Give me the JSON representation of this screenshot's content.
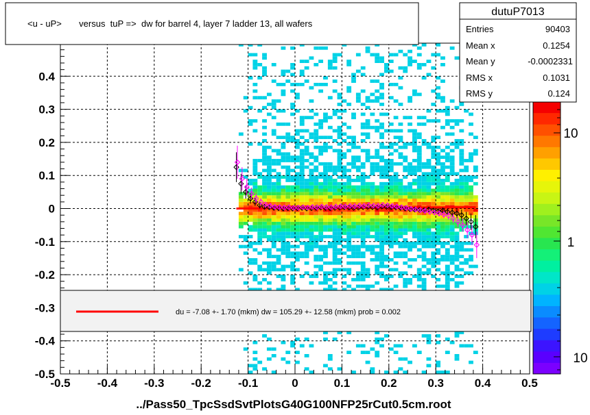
{
  "chart_data": {
    "type": "heatmap",
    "title": "<u - uP>       versus  tuP =>  dw for barrel 4, layer 7 ladder 13, all wafers",
    "xlabel": "../Pass50_TpcSsdSvtPlotsG40G100NFP25rCut0.5cm.root",
    "ylabel": "",
    "xlim": [
      -0.5,
      0.5
    ],
    "ylim": [
      -0.5,
      0.5
    ],
    "x_ticks": [
      -0.5,
      -0.4,
      -0.3,
      -0.2,
      -0.1,
      0,
      0.1,
      0.2,
      0.3,
      0.4,
      0.5
    ],
    "x_tick_labels": [
      "-0.5",
      "-0.4",
      "-0.3",
      "-0.2",
      "-0.1",
      "0",
      "0.1",
      "0.2",
      "0.3",
      "0.4",
      "0.5"
    ],
    "y_ticks": [
      -0.5,
      -0.4,
      -0.3,
      -0.2,
      -0.1,
      0,
      0.1,
      0.2,
      0.3,
      0.4
    ],
    "y_tick_labels": [
      "-0.5",
      "-0.4",
      "-0.3",
      "-0.2",
      "-0.1",
      "0",
      "0.1",
      "0.2",
      "0.3",
      "0.4"
    ],
    "grid": true,
    "occupied_x_range": [
      -0.12,
      0.39
    ],
    "stats": {
      "name": "dutuP7013",
      "rows": [
        {
          "label": "Entries",
          "value": "90403"
        },
        {
          "label": "Mean x",
          "value": "0.1254"
        },
        {
          "label": "Mean y",
          "value": "-0.0002331"
        },
        {
          "label": "RMS x",
          "value": "0.1031"
        },
        {
          "label": "RMS y",
          "value": "0.124"
        }
      ]
    },
    "color_scale": {
      "type": "log",
      "tick_labels": [
        "10",
        "1",
        "10"
      ],
      "colors": [
        "#7b00ff",
        "#5a00ff",
        "#3c14ff",
        "#1e3cff",
        "#1464ff",
        "#0a8cff",
        "#00b4ff",
        "#00d2e6",
        "#00e6c8",
        "#00f0a0",
        "#14f078",
        "#28e650",
        "#50e632",
        "#78e628",
        "#a0f01e",
        "#c8f514",
        "#e6f50a",
        "#fff000",
        "#ffc800",
        "#ffa000",
        "#ff7800",
        "#ff5000",
        "#ff2800",
        "#f50000"
      ]
    },
    "fit_legend": {
      "text": "du =   -7.08 +-  1.70 (mkm) dw =  105.29 +- 12.58 (mkm) prob = 0.002",
      "line_color": "#ff0000"
    },
    "fit_line": {
      "x": [
        -0.125,
        0.385
      ],
      "y": [
        0.0,
        0.004
      ],
      "color": "#ff0000"
    },
    "series": [
      {
        "marker_color": "#000000",
        "x": [
          -0.125,
          -0.115,
          -0.105,
          -0.095,
          -0.085,
          -0.075,
          -0.065,
          -0.055,
          -0.045,
          -0.035,
          -0.025,
          -0.015,
          -0.005,
          0.005,
          0.015,
          0.025,
          0.035,
          0.045,
          0.055,
          0.065,
          0.075,
          0.085,
          0.095,
          0.105,
          0.115,
          0.125,
          0.135,
          0.145,
          0.155,
          0.165,
          0.175,
          0.185,
          0.195,
          0.205,
          0.215,
          0.225,
          0.235,
          0.245,
          0.255,
          0.265,
          0.275,
          0.285,
          0.295,
          0.305,
          0.315,
          0.325,
          0.335,
          0.345,
          0.355,
          0.365,
          0.375,
          0.385
        ],
        "y": [
          0.125,
          0.075,
          0.05,
          0.03,
          0.02,
          0.01,
          0.005,
          0.004,
          0.002,
          0.001,
          0.0,
          0.001,
          0.0,
          0.001,
          0.002,
          0.0,
          0.001,
          0.002,
          0.003,
          0.002,
          0.001,
          0.002,
          0.003,
          0.004,
          0.003,
          0.002,
          0.003,
          0.004,
          0.005,
          0.004,
          0.003,
          0.006,
          0.005,
          0.004,
          0.003,
          0.002,
          0.0,
          -0.002,
          -0.003,
          -0.004,
          -0.005,
          -0.003,
          -0.006,
          -0.008,
          -0.006,
          -0.01,
          -0.012,
          -0.015,
          -0.02,
          -0.03,
          -0.04,
          -0.055
        ],
        "err": [
          0.045,
          0.03,
          0.02,
          0.015,
          0.012,
          0.01,
          0.008,
          0.006,
          0.005,
          0.004,
          0.004,
          0.004,
          0.003,
          0.003,
          0.003,
          0.003,
          0.003,
          0.003,
          0.003,
          0.003,
          0.003,
          0.003,
          0.003,
          0.003,
          0.003,
          0.003,
          0.003,
          0.003,
          0.003,
          0.003,
          0.003,
          0.003,
          0.004,
          0.004,
          0.004,
          0.004,
          0.004,
          0.005,
          0.005,
          0.005,
          0.006,
          0.006,
          0.007,
          0.008,
          0.009,
          0.01,
          0.012,
          0.014,
          0.017,
          0.02,
          0.025,
          0.035
        ]
      },
      {
        "marker_color": "#ff00ff",
        "x": [
          -0.125,
          -0.115,
          -0.105,
          -0.095,
          -0.085,
          -0.075,
          -0.065,
          -0.055,
          -0.045,
          -0.035,
          -0.025,
          -0.015,
          -0.005,
          0.005,
          0.015,
          0.025,
          0.035,
          0.045,
          0.055,
          0.065,
          0.075,
          0.085,
          0.095,
          0.105,
          0.115,
          0.125,
          0.135,
          0.145,
          0.155,
          0.165,
          0.175,
          0.185,
          0.195,
          0.205,
          0.215,
          0.225,
          0.235,
          0.245,
          0.255,
          0.265,
          0.275,
          0.285,
          0.295,
          0.305,
          0.315,
          0.325,
          0.335,
          0.345,
          0.355,
          0.365,
          0.375,
          0.385
        ],
        "y": [
          0.14,
          0.09,
          0.065,
          0.045,
          0.03,
          0.02,
          0.012,
          0.008,
          0.005,
          0.004,
          0.003,
          0.004,
          0.002,
          0.003,
          0.004,
          0.003,
          0.005,
          0.004,
          0.006,
          0.005,
          0.004,
          0.006,
          0.007,
          0.006,
          0.008,
          0.007,
          0.009,
          0.008,
          0.01,
          0.009,
          0.008,
          0.011,
          0.01,
          0.008,
          0.006,
          0.004,
          0.002,
          -0.001,
          -0.003,
          -0.005,
          -0.007,
          -0.01,
          -0.012,
          -0.015,
          -0.018,
          -0.022,
          -0.03,
          -0.04,
          -0.05,
          -0.065,
          -0.08,
          -0.11
        ],
        "err": [
          0.05,
          0.035,
          0.025,
          0.018,
          0.014,
          0.011,
          0.009,
          0.007,
          0.006,
          0.005,
          0.004,
          0.004,
          0.004,
          0.004,
          0.004,
          0.004,
          0.004,
          0.004,
          0.004,
          0.004,
          0.004,
          0.004,
          0.004,
          0.004,
          0.004,
          0.004,
          0.004,
          0.004,
          0.004,
          0.004,
          0.004,
          0.004,
          0.005,
          0.005,
          0.005,
          0.005,
          0.005,
          0.006,
          0.006,
          0.006,
          0.007,
          0.007,
          0.008,
          0.009,
          0.01,
          0.012,
          0.014,
          0.016,
          0.02,
          0.024,
          0.03,
          0.04
        ]
      }
    ]
  }
}
